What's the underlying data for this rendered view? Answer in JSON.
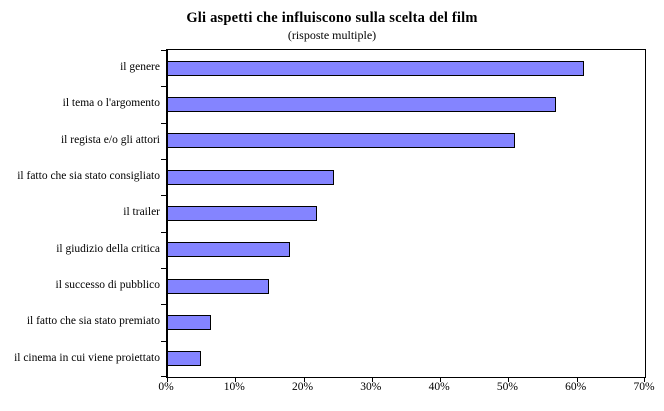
{
  "chart_data": {
    "type": "bar",
    "orientation": "horizontal",
    "title": "Gli aspetti che influiscono sulla scelta del film",
    "subtitle": "(risposte multiple)",
    "categories": [
      "il genere",
      "il tema o l'argomento",
      "il regista e/o gli attori",
      "il fatto che sia stato consigliato",
      "il trailer",
      "il giudizio della critica",
      "il successo di pubblico",
      "il fatto che sia stato premiato",
      "il cinema in cui viene proiettato"
    ],
    "values": [
      61,
      57,
      51,
      24.5,
      22,
      18,
      15,
      6.5,
      5
    ],
    "value_unit": "%",
    "xlim": [
      0,
      70
    ],
    "x_tick_values": [
      0,
      10,
      20,
      30,
      40,
      50,
      60,
      70
    ],
    "x_tick_labels": [
      "0%",
      "10%",
      "20%",
      "30%",
      "40%",
      "50%",
      "60%",
      "70%"
    ],
    "grid": false,
    "legend": "none",
    "bar_color": "#8484FF",
    "bar_border_color": "#000000",
    "axis_color": "#000000",
    "background_color": "#FFFFFF"
  }
}
